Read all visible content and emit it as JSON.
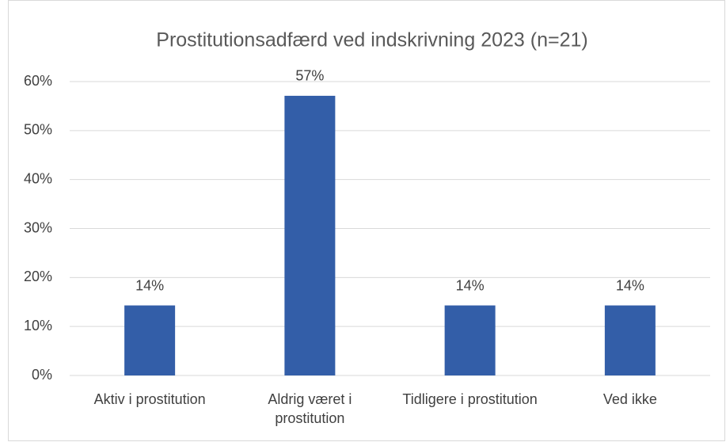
{
  "chart_data": {
    "type": "bar",
    "title": "Prostitutionsadfærd ved indskrivning 2023 (n=21)",
    "categories": [
      "Aktiv i prostitution",
      "Aldrig været i prostitution",
      "Tidligere i prostitution",
      "Ved ikke"
    ],
    "values": [
      14.3,
      57.1,
      14.3,
      14.3
    ],
    "value_labels": [
      "14%",
      "57%",
      "14%",
      "14%"
    ],
    "color": "#335ea8",
    "ylim": [
      0,
      60
    ],
    "yticks": [
      {
        "value": 0,
        "label": "0%"
      },
      {
        "value": 10,
        "label": "10%"
      },
      {
        "value": 20,
        "label": "20%"
      },
      {
        "value": 30,
        "label": "30%"
      },
      {
        "value": 40,
        "label": "40%"
      },
      {
        "value": 50,
        "label": "50%"
      },
      {
        "value": 60,
        "label": "60%"
      }
    ],
    "grid": true
  }
}
